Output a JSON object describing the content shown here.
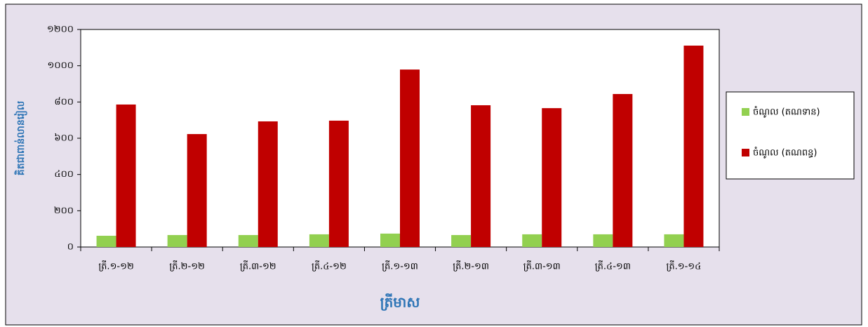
{
  "chart_data": {
    "type": "bar",
    "x_label": "ត្រីមាស",
    "y_label": "គិតជាពាន់លានរៀល",
    "categories": [
      "ត្រី.១-១២",
      "ត្រី.២-១២",
      "ត្រី.៣-១២",
      "ត្រី.៤-១២",
      "ត្រី.១-១៣",
      "ត្រី.២-១៣",
      "ត្រី.៣-១៣",
      "ត្រី.៤-១៣",
      "ត្រី.១-១៤"
    ],
    "series": [
      {
        "name": "ចំណូល (តណទាន)",
        "color": "#92d050",
        "values": [
          62,
          66,
          66,
          70,
          74,
          66,
          70,
          70,
          70
        ]
      },
      {
        "name": "ចំណូល (តណពន្ធ)",
        "color": "#c00000",
        "values": [
          786,
          623,
          693,
          697,
          979,
          782,
          766,
          844,
          1111
        ]
      }
    ],
    "ylim": [
      0,
      1200
    ],
    "yticks": [
      {
        "value": 0,
        "label": "០"
      },
      {
        "value": 200,
        "label": "២០០"
      },
      {
        "value": 400,
        "label": "៤០០"
      },
      {
        "value": 600,
        "label": "៦០០"
      },
      {
        "value": 800,
        "label": "៨០០"
      },
      {
        "value": 1000,
        "label": "១០០០"
      },
      {
        "value": 1200,
        "label": "១២០០"
      }
    ],
    "grid": false,
    "legend": "right"
  }
}
